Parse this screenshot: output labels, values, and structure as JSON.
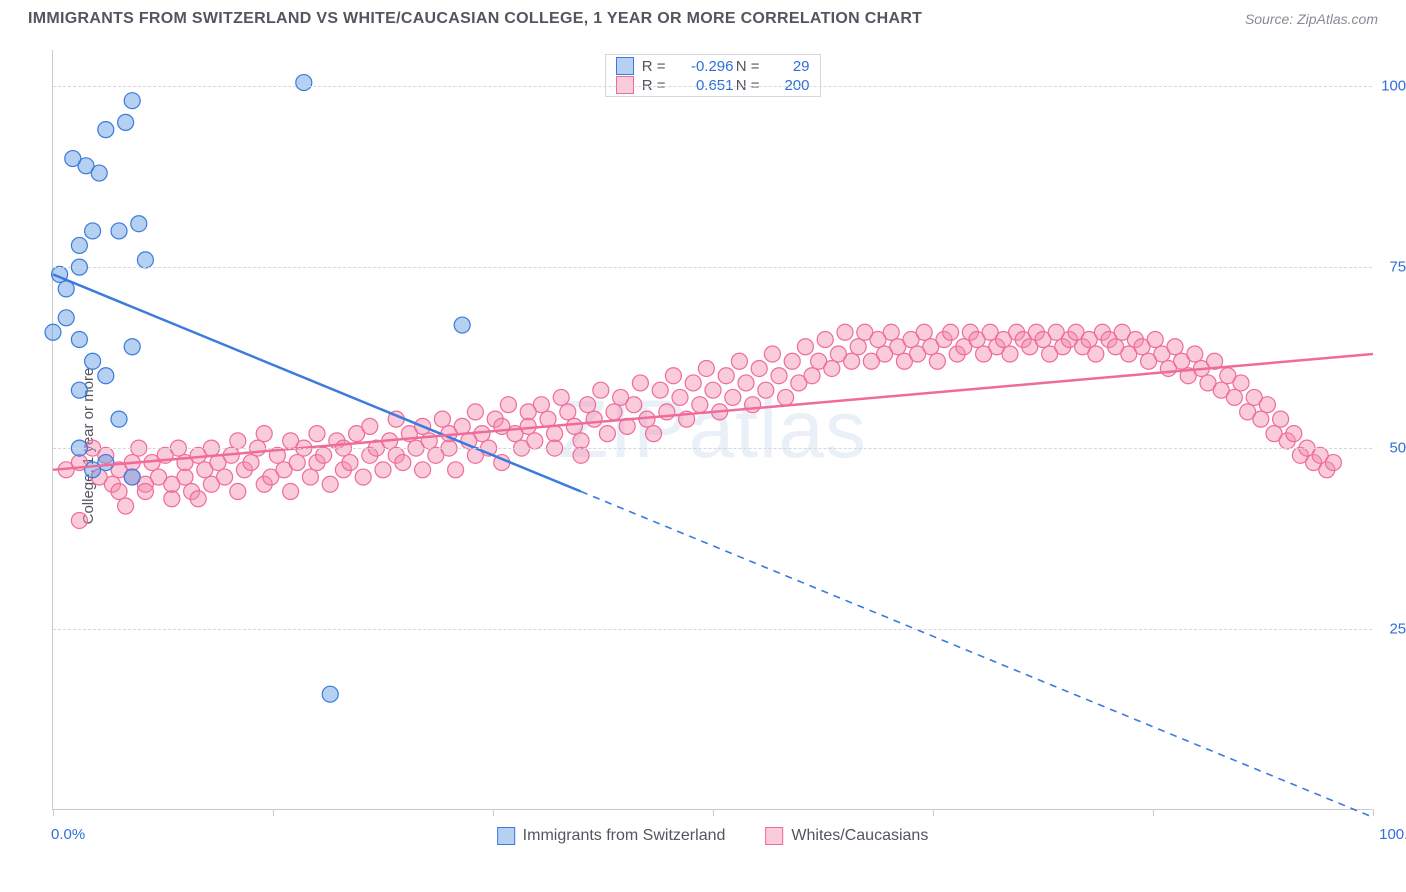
{
  "title": "IMMIGRANTS FROM SWITZERLAND VS WHITE/CAUCASIAN COLLEGE, 1 YEAR OR MORE CORRELATION CHART",
  "source": "Source: ZipAtlas.com",
  "watermark": "ZIPatlas",
  "chart": {
    "type": "scatter",
    "xlim": [
      0,
      100
    ],
    "ylim": [
      0,
      105
    ],
    "xticks": [
      0,
      16.67,
      33.33,
      50,
      66.67,
      83.33,
      100
    ],
    "x_minmax_labels": [
      "0.0%",
      "100.0%"
    ],
    "yticks": [
      25,
      50,
      75,
      100
    ],
    "ytick_labels": [
      "25.0%",
      "50.0%",
      "75.0%",
      "100.0%"
    ],
    "ylabel": "College, 1 year or more",
    "grid_color": "#d6d6de",
    "axis_color": "#c9c9d0",
    "tick_label_color": "#2f6fd8",
    "background_color": "#ffffff",
    "marker_radius": 8,
    "marker_opacity": 0.55,
    "line_width": 2.5
  },
  "series": [
    {
      "key": "swiss",
      "label": "Immigrants from Switzerland",
      "color": "#3a7bdc",
      "fill": "rgba(90,150,225,0.45)",
      "stroke": "#3a7bdc",
      "R": "-0.296",
      "N": "29",
      "regression": {
        "x1": 0,
        "y1": 74,
        "x2": 40,
        "y2": 44,
        "dash_after_x": 40,
        "dash_to_x": 100,
        "dash_to_y": -1
      },
      "points": [
        [
          2,
          75
        ],
        [
          2,
          78
        ],
        [
          0.5,
          74
        ],
        [
          3,
          80
        ],
        [
          5,
          80
        ],
        [
          2,
          65
        ],
        [
          1,
          72
        ],
        [
          1,
          68
        ],
        [
          4,
          94
        ],
        [
          5.5,
          95
        ],
        [
          6,
          98
        ],
        [
          3.5,
          88
        ],
        [
          2.5,
          89
        ],
        [
          3,
          62
        ],
        [
          4,
          60
        ],
        [
          2,
          58
        ],
        [
          6,
          64
        ],
        [
          7,
          76
        ],
        [
          5,
          54
        ],
        [
          3,
          47
        ],
        [
          4,
          48
        ],
        [
          2,
          50
        ],
        [
          6,
          46
        ],
        [
          19,
          100.5
        ],
        [
          31,
          67
        ],
        [
          21,
          16
        ],
        [
          6.5,
          81
        ],
        [
          1.5,
          90
        ],
        [
          0,
          66
        ]
      ]
    },
    {
      "key": "white",
      "label": "Whites/Caucasians",
      "color": "#f06b9a",
      "fill": "rgba(245,140,175,0.45)",
      "stroke": "#f06b9a",
      "R": "0.651",
      "N": "200",
      "regression": {
        "x1": 0,
        "y1": 47,
        "x2": 100,
        "y2": 63
      },
      "points": [
        [
          1,
          47
        ],
        [
          2,
          48
        ],
        [
          2,
          40
        ],
        [
          3,
          50
        ],
        [
          3.5,
          46
        ],
        [
          4,
          49
        ],
        [
          4.5,
          45
        ],
        [
          5,
          47
        ],
        [
          5,
          44
        ],
        [
          5.5,
          42
        ],
        [
          6,
          48
        ],
        [
          6,
          46
        ],
        [
          6.5,
          50
        ],
        [
          7,
          45
        ],
        [
          7,
          44
        ],
        [
          7.5,
          48
        ],
        [
          8,
          46
        ],
        [
          8.5,
          49
        ],
        [
          9,
          43
        ],
        [
          9,
          45
        ],
        [
          9.5,
          50
        ],
        [
          10,
          46
        ],
        [
          10,
          48
        ],
        [
          10.5,
          44
        ],
        [
          11,
          49
        ],
        [
          11,
          43
        ],
        [
          11.5,
          47
        ],
        [
          12,
          45
        ],
        [
          12,
          50
        ],
        [
          12.5,
          48
        ],
        [
          13,
          46
        ],
        [
          13.5,
          49
        ],
        [
          14,
          51
        ],
        [
          14,
          44
        ],
        [
          14.5,
          47
        ],
        [
          15,
          48
        ],
        [
          15.5,
          50
        ],
        [
          16,
          45
        ],
        [
          16,
          52
        ],
        [
          16.5,
          46
        ],
        [
          17,
          49
        ],
        [
          17.5,
          47
        ],
        [
          18,
          51
        ],
        [
          18,
          44
        ],
        [
          18.5,
          48
        ],
        [
          19,
          50
        ],
        [
          19.5,
          46
        ],
        [
          20,
          52
        ],
        [
          20,
          48
        ],
        [
          20.5,
          49
        ],
        [
          21,
          45
        ],
        [
          21.5,
          51
        ],
        [
          22,
          47
        ],
        [
          22,
          50
        ],
        [
          22.5,
          48
        ],
        [
          23,
          52
        ],
        [
          23.5,
          46
        ],
        [
          24,
          49
        ],
        [
          24,
          53
        ],
        [
          24.5,
          50
        ],
        [
          25,
          47
        ],
        [
          25.5,
          51
        ],
        [
          26,
          49
        ],
        [
          26,
          54
        ],
        [
          26.5,
          48
        ],
        [
          27,
          52
        ],
        [
          27.5,
          50
        ],
        [
          28,
          47
        ],
        [
          28,
          53
        ],
        [
          28.5,
          51
        ],
        [
          29,
          49
        ],
        [
          29.5,
          54
        ],
        [
          30,
          50
        ],
        [
          30,
          52
        ],
        [
          30.5,
          47
        ],
        [
          31,
          53
        ],
        [
          31.5,
          51
        ],
        [
          32,
          49
        ],
        [
          32,
          55
        ],
        [
          32.5,
          52
        ],
        [
          33,
          50
        ],
        [
          33.5,
          54
        ],
        [
          34,
          53
        ],
        [
          34,
          48
        ],
        [
          34.5,
          56
        ],
        [
          35,
          52
        ],
        [
          35.5,
          50
        ],
        [
          36,
          55
        ],
        [
          36,
          53
        ],
        [
          36.5,
          51
        ],
        [
          37,
          56
        ],
        [
          37.5,
          54
        ],
        [
          38,
          52
        ],
        [
          38,
          50
        ],
        [
          38.5,
          57
        ],
        [
          39,
          55
        ],
        [
          39.5,
          53
        ],
        [
          40,
          51
        ],
        [
          40,
          49
        ],
        [
          40.5,
          56
        ],
        [
          41,
          54
        ],
        [
          41.5,
          58
        ],
        [
          42,
          52
        ],
        [
          42.5,
          55
        ],
        [
          43,
          57
        ],
        [
          43.5,
          53
        ],
        [
          44,
          56
        ],
        [
          44.5,
          59
        ],
        [
          45,
          54
        ],
        [
          45.5,
          52
        ],
        [
          46,
          58
        ],
        [
          46.5,
          55
        ],
        [
          47,
          60
        ],
        [
          47.5,
          57
        ],
        [
          48,
          54
        ],
        [
          48.5,
          59
        ],
        [
          49,
          56
        ],
        [
          49.5,
          61
        ],
        [
          50,
          58
        ],
        [
          50.5,
          55
        ],
        [
          51,
          60
        ],
        [
          51.5,
          57
        ],
        [
          52,
          62
        ],
        [
          52.5,
          59
        ],
        [
          53,
          56
        ],
        [
          53.5,
          61
        ],
        [
          54,
          58
        ],
        [
          54.5,
          63
        ],
        [
          55,
          60
        ],
        [
          55.5,
          57
        ],
        [
          56,
          62
        ],
        [
          56.5,
          59
        ],
        [
          57,
          64
        ],
        [
          57.5,
          60
        ],
        [
          58,
          62
        ],
        [
          58.5,
          65
        ],
        [
          59,
          61
        ],
        [
          59.5,
          63
        ],
        [
          60,
          66
        ],
        [
          60.5,
          62
        ],
        [
          61,
          64
        ],
        [
          61.5,
          66
        ],
        [
          62,
          62
        ],
        [
          62.5,
          65
        ],
        [
          63,
          63
        ],
        [
          63.5,
          66
        ],
        [
          64,
          64
        ],
        [
          64.5,
          62
        ],
        [
          65,
          65
        ],
        [
          65.5,
          63
        ],
        [
          66,
          66
        ],
        [
          66.5,
          64
        ],
        [
          67,
          62
        ],
        [
          67.5,
          65
        ],
        [
          68,
          66
        ],
        [
          68.5,
          63
        ],
        [
          69,
          64
        ],
        [
          69.5,
          66
        ],
        [
          70,
          65
        ],
        [
          70.5,
          63
        ],
        [
          71,
          66
        ],
        [
          71.5,
          64
        ],
        [
          72,
          65
        ],
        [
          72.5,
          63
        ],
        [
          73,
          66
        ],
        [
          73.5,
          65
        ],
        [
          74,
          64
        ],
        [
          74.5,
          66
        ],
        [
          75,
          65
        ],
        [
          75.5,
          63
        ],
        [
          76,
          66
        ],
        [
          76.5,
          64
        ],
        [
          77,
          65
        ],
        [
          77.5,
          66
        ],
        [
          78,
          64
        ],
        [
          78.5,
          65
        ],
        [
          79,
          63
        ],
        [
          79.5,
          66
        ],
        [
          80,
          65
        ],
        [
          80.5,
          64
        ],
        [
          81,
          66
        ],
        [
          81.5,
          63
        ],
        [
          82,
          65
        ],
        [
          82.5,
          64
        ],
        [
          83,
          62
        ],
        [
          83.5,
          65
        ],
        [
          84,
          63
        ],
        [
          84.5,
          61
        ],
        [
          85,
          64
        ],
        [
          85.5,
          62
        ],
        [
          86,
          60
        ],
        [
          86.5,
          63
        ],
        [
          87,
          61
        ],
        [
          87.5,
          59
        ],
        [
          88,
          62
        ],
        [
          88.5,
          58
        ],
        [
          89,
          60
        ],
        [
          89.5,
          57
        ],
        [
          90,
          59
        ],
        [
          90.5,
          55
        ],
        [
          91,
          57
        ],
        [
          91.5,
          54
        ],
        [
          92,
          56
        ],
        [
          92.5,
          52
        ],
        [
          93,
          54
        ],
        [
          93.5,
          51
        ],
        [
          94,
          52
        ],
        [
          94.5,
          49
        ],
        [
          95,
          50
        ],
        [
          95.5,
          48
        ],
        [
          96,
          49
        ],
        [
          96.5,
          47
        ],
        [
          97,
          48
        ]
      ]
    }
  ],
  "legend_top": {
    "rows": [
      {
        "sw_fill": "rgba(90,150,225,0.45)",
        "sw_border": "#3a7bdc",
        "r_label": "R =",
        "r_val": "-0.296",
        "n_label": "N =",
        "n_val": "29"
      },
      {
        "sw_fill": "rgba(245,140,175,0.45)",
        "sw_border": "#f06b9a",
        "r_label": "R =",
        "r_val": "0.651",
        "n_label": "N =",
        "n_val": "200"
      }
    ]
  }
}
